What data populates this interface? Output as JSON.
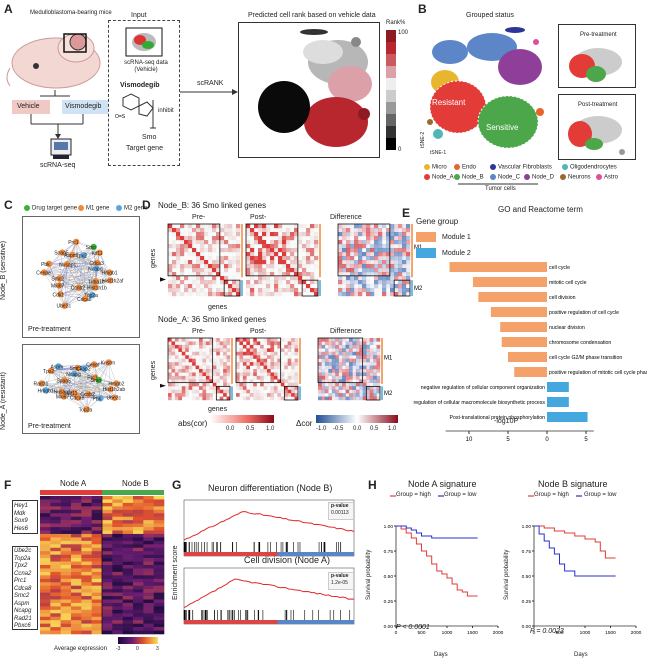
{
  "panels": {
    "A": {
      "letter": "A",
      "mouse_label": "Medulloblastoma-bearing mice",
      "vehicle": "Vehicle",
      "vismodegib": "Vismodegib",
      "scrna": "scRNA-seq",
      "input_title": "Input",
      "input_data": "scRNA-seq data (Vehicle)",
      "drug": "Vismodegib",
      "inhibit": "inhibit",
      "smo": "Smo",
      "target": "Target gene",
      "scrank": "scRANK",
      "pred_title": "Predicted cell rank based on vehicle data",
      "rank_title": "Rank%",
      "rank_max": "100",
      "rank_min": "0"
    },
    "B": {
      "letter": "B",
      "title": "Grouped status",
      "resistant": "Resistant",
      "sensitive": "Sensitive",
      "pre": "Pre-treatment",
      "post": "Post-treatment",
      "tsne2": "tSNE-2",
      "tsne1": "tSNE-1",
      "legend": [
        {
          "label": "Micro",
          "color": "#e7b52e"
        },
        {
          "label": "Endo",
          "color": "#e5662c"
        },
        {
          "label": "Vascular Fibroblasts",
          "color": "#2c3795"
        },
        {
          "label": "Oligodendrocytes",
          "color": "#4fb7b4"
        },
        {
          "label": "Node_A",
          "color": "#e23b38"
        },
        {
          "label": "Node_B",
          "color": "#4ca74a"
        },
        {
          "label": "Node_C",
          "color": "#5c86c7"
        },
        {
          "label": "Node_D",
          "color": "#8f3f9a"
        },
        {
          "label": "Neurons",
          "color": "#9b6a2a"
        },
        {
          "label": "Astro",
          "color": "#e34d9b"
        }
      ],
      "tumor": "Tumor cells"
    },
    "C": {
      "letter": "C",
      "legend": [
        {
          "label": "Drug target gene",
          "color": "#3db23a"
        },
        {
          "label": "M1 gene",
          "color": "#f0893a"
        },
        {
          "label": "M2 gene",
          "color": "#5aa7de"
        }
      ],
      "top_side": "Node_B (sensitive)",
      "bottom_side": "Node_A (resistant)",
      "top_cond": "Pre-treatment",
      "bottom_cond": "Pre-treatment",
      "genes_top": [
        "Hmgb1",
        "Hist1h2af",
        "Tuba1b",
        "Hist1h1b",
        "Top2a",
        "Cdca8",
        "Ccnb2",
        "Ube2c",
        "Cdk1",
        "Mki67",
        "Smc2",
        "Cenpe",
        "Pbk",
        "Nusap1",
        "Spag5",
        "Aspm",
        "Prc1",
        "Tpx2",
        "Smo",
        "Kif11",
        "Cdca3",
        "Ncapg"
      ],
      "genes_bottom": [
        "Hmgb2",
        "Hist1h2ab",
        "Ube2c",
        "Pbk",
        "Ccnb2",
        "Top2a",
        "Cdca8",
        "Kif11",
        "Mki67",
        "Nusap1",
        "Hmgb1",
        "Rad21",
        "Spag5",
        "Tpx2",
        "Aspm",
        "Ncapg",
        "Smc2",
        "Ckap2",
        "Cenpf",
        "Knstrn",
        "Prc1",
        "Smo"
      ]
    },
    "D": {
      "letter": "D",
      "title_top": "Node_B: 36 Smo linked genes",
      "title_bottom": "Node_A: 36 Smo linked genes",
      "pre": "Pre-",
      "post": "Post-",
      "diff": "Difference",
      "genes": "genes",
      "m1": "M1",
      "m2": "M2",
      "abs_label": "abs(cor)",
      "abs_ticks": [
        "0.0",
        "0.5",
        "1.0"
      ],
      "dcor_label": "Δcor",
      "dcor_ticks": [
        "-1.0",
        "-0.5",
        "0.0",
        "0.5",
        "1.0"
      ]
    },
    "E": {
      "letter": "E",
      "title": "GO and Reactome term",
      "legend_title": "Gene group",
      "modules": [
        {
          "label": "Module 1",
          "color": "#f5a26a"
        },
        {
          "label": "Module 2",
          "color": "#44a8df"
        }
      ],
      "xlabel": "-log10P",
      "xticks": [
        "10",
        "5",
        "0",
        "5"
      ]
    },
    "F": {
      "letter": "F",
      "nodeA": "Node A",
      "nodeB": "Node B",
      "genes_top": [
        "Hey1",
        "Mdk",
        "Sox9",
        "Hes6"
      ],
      "genes_bottom": [
        "Ube2c",
        "Top2a",
        "Tpx2",
        "Ccna2",
        "Prc1",
        "Cdca8",
        "Smc2",
        "Aspm",
        "Ncapg",
        "Rad21",
        "Pbxc6"
      ],
      "colorbar_label": "Average expression",
      "colorbar_ticks": [
        "-3",
        "0",
        "3"
      ]
    },
    "G": {
      "letter": "G",
      "title_top": "Neuron differentiation (Node B)",
      "title_bottom": "Cell division (Node A)",
      "ylabel": "Enrichment score",
      "pval_top": "p-value",
      "pval_top_val": "0.00113",
      "pval_bot": "p-value",
      "pval_bot_val": "1.2e-05"
    },
    "H": {
      "letter": "H",
      "title_left": "Node A signature",
      "title_right": "Node B signature",
      "legend_high": "Group = high",
      "legend_low": "Group = low",
      "ylabel": "Survival probability",
      "xlabel": "Days",
      "p_left": "P < 0.0001",
      "p_right": "P = 0.0023",
      "yticks": [
        "0.00",
        "0.25",
        "0.50",
        "0.75",
        "1.00"
      ],
      "xticks": [
        "0",
        "500",
        "1000",
        "1500",
        "2000"
      ]
    }
  },
  "chart_data": [
    {
      "type": "bar",
      "title": "GO and Reactome term",
      "xlabel": "-log10P",
      "categories": [
        "cell cycle",
        "mitotic cell cycle",
        "cell division",
        "positive regulation of cell cycle",
        "nuclear division",
        "chromosome condensation",
        "cell cycle G2/M phase transition",
        "positive regulation of mitotic cell cycle phase transition",
        "negative regulation of cellular component organization",
        "regulation of cellular macromolecule biosynthetic process",
        "Post-translational protein phosphorylation"
      ],
      "series": [
        {
          "name": "Module 1",
          "values": [
            12.5,
            9.5,
            8.8,
            7.2,
            6.0,
            5.8,
            5.0,
            4.2,
            0,
            0,
            0
          ]
        },
        {
          "name": "Module 2",
          "values": [
            0,
            0,
            0,
            0,
            0,
            0,
            0,
            0,
            2.8,
            2.8,
            5.2
          ]
        }
      ]
    },
    {
      "type": "line",
      "title": "Node A signature",
      "xlabel": "Days",
      "ylabel": "Survival probability",
      "xlim": [
        0,
        2000
      ],
      "ylim": [
        0,
        1
      ],
      "series": [
        {
          "name": "Group = high",
          "x": [
            0,
            100,
            200,
            300,
            400,
            500,
            600,
            700,
            800,
            900,
            1000,
            1100,
            1200,
            1300,
            1400,
            1500,
            1600
          ],
          "y": [
            1.0,
            0.97,
            0.93,
            0.88,
            0.82,
            0.75,
            0.7,
            0.62,
            0.55,
            0.52,
            0.48,
            0.42,
            0.36,
            0.34,
            0.3,
            0.3,
            0.3
          ]
        },
        {
          "name": "Group = low",
          "x": [
            0,
            100,
            200,
            300,
            400,
            500,
            600,
            700,
            800,
            1000,
            1200,
            1400,
            1600
          ],
          "y": [
            1.0,
            1.0,
            0.98,
            0.96,
            0.93,
            0.9,
            0.9,
            0.88,
            0.88,
            0.88,
            0.88,
            0.88,
            0.88
          ]
        }
      ]
    },
    {
      "type": "line",
      "title": "Node B signature",
      "xlabel": "Days",
      "ylabel": "Survival probability",
      "xlim": [
        0,
        2000
      ],
      "ylim": [
        0,
        1
      ],
      "series": [
        {
          "name": "Group = high",
          "x": [
            0,
            200,
            400,
            600,
            800,
            1000,
            1200,
            1300,
            1400,
            1600
          ],
          "y": [
            1.0,
            0.98,
            0.95,
            0.93,
            0.9,
            0.87,
            0.84,
            0.75,
            0.68,
            0.68
          ]
        },
        {
          "name": "Group = low",
          "x": [
            0,
            100,
            200,
            300,
            400,
            500,
            600,
            800,
            1000,
            1200,
            1600
          ],
          "y": [
            1.0,
            0.92,
            0.85,
            0.78,
            0.72,
            0.62,
            0.55,
            0.5,
            0.5,
            0.5,
            0.5
          ]
        }
      ]
    }
  ]
}
